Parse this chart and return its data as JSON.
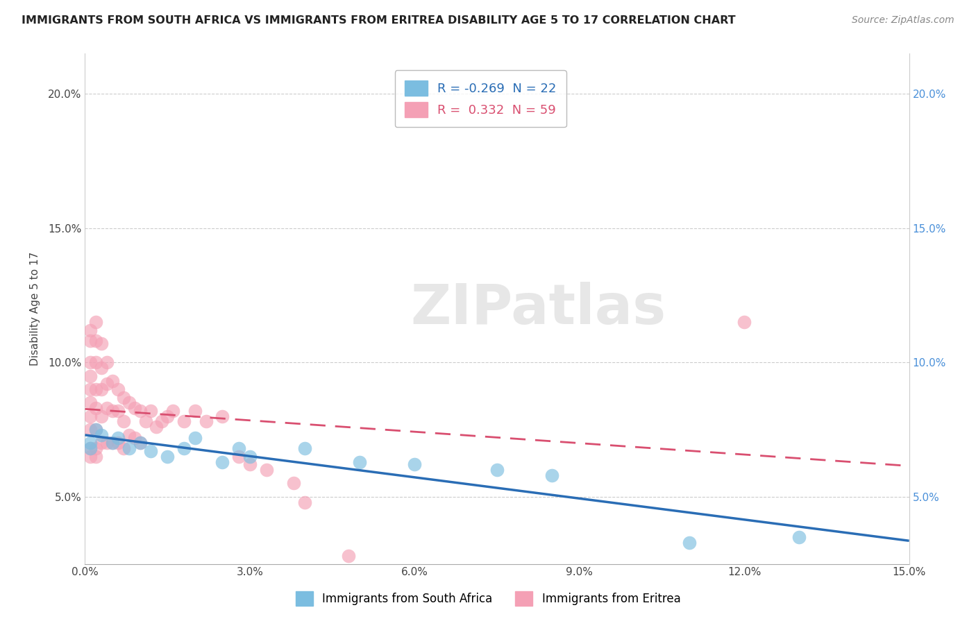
{
  "title": "IMMIGRANTS FROM SOUTH AFRICA VS IMMIGRANTS FROM ERITREA DISABILITY AGE 5 TO 17 CORRELATION CHART",
  "source": "Source: ZipAtlas.com",
  "ylabel": "Disability Age 5 to 17",
  "legend_label_1": "Immigrants from South Africa",
  "legend_label_2": "Immigrants from Eritrea",
  "R1": -0.269,
  "N1": 22,
  "R2": 0.332,
  "N2": 59,
  "color1": "#7bbde0",
  "color2": "#f4a0b5",
  "trendline_color1": "#2a6db5",
  "trendline_color2": "#d94f70",
  "xlim": [
    0.0,
    0.15
  ],
  "ylim": [
    0.025,
    0.215
  ],
  "xticks": [
    0.0,
    0.03,
    0.06,
    0.09,
    0.12,
    0.15
  ],
  "yticks": [
    0.05,
    0.1,
    0.15,
    0.2
  ],
  "watermark": "ZIPatlas",
  "south_africa_x": [
    0.001,
    0.001,
    0.002,
    0.003,
    0.005,
    0.006,
    0.008,
    0.01,
    0.012,
    0.015,
    0.018,
    0.02,
    0.025,
    0.028,
    0.03,
    0.04,
    0.05,
    0.06,
    0.075,
    0.085,
    0.11,
    0.13
  ],
  "south_africa_y": [
    0.07,
    0.068,
    0.075,
    0.073,
    0.07,
    0.072,
    0.068,
    0.07,
    0.067,
    0.065,
    0.068,
    0.072,
    0.063,
    0.068,
    0.065,
    0.068,
    0.063,
    0.062,
    0.06,
    0.058,
    0.033,
    0.035
  ],
  "eritrea_x": [
    0.001,
    0.001,
    0.001,
    0.001,
    0.001,
    0.001,
    0.001,
    0.001,
    0.001,
    0.001,
    0.002,
    0.002,
    0.002,
    0.002,
    0.002,
    0.002,
    0.002,
    0.002,
    0.003,
    0.003,
    0.003,
    0.003,
    0.003,
    0.004,
    0.004,
    0.004,
    0.004,
    0.005,
    0.005,
    0.005,
    0.006,
    0.006,
    0.006,
    0.007,
    0.007,
    0.007,
    0.008,
    0.008,
    0.009,
    0.009,
    0.01,
    0.01,
    0.011,
    0.012,
    0.013,
    0.014,
    0.015,
    0.016,
    0.018,
    0.02,
    0.022,
    0.025,
    0.028,
    0.03,
    0.033,
    0.038,
    0.04,
    0.048,
    0.12
  ],
  "eritrea_y": [
    0.112,
    0.108,
    0.1,
    0.095,
    0.09,
    0.085,
    0.08,
    0.075,
    0.068,
    0.065,
    0.115,
    0.108,
    0.1,
    0.09,
    0.083,
    0.075,
    0.068,
    0.065,
    0.107,
    0.098,
    0.09,
    0.08,
    0.07,
    0.1,
    0.092,
    0.083,
    0.07,
    0.093,
    0.082,
    0.07,
    0.09,
    0.082,
    0.07,
    0.087,
    0.078,
    0.068,
    0.085,
    0.073,
    0.083,
    0.072,
    0.082,
    0.07,
    0.078,
    0.082,
    0.076,
    0.078,
    0.08,
    0.082,
    0.078,
    0.082,
    0.078,
    0.08,
    0.065,
    0.062,
    0.06,
    0.055,
    0.048,
    0.028,
    0.115
  ]
}
